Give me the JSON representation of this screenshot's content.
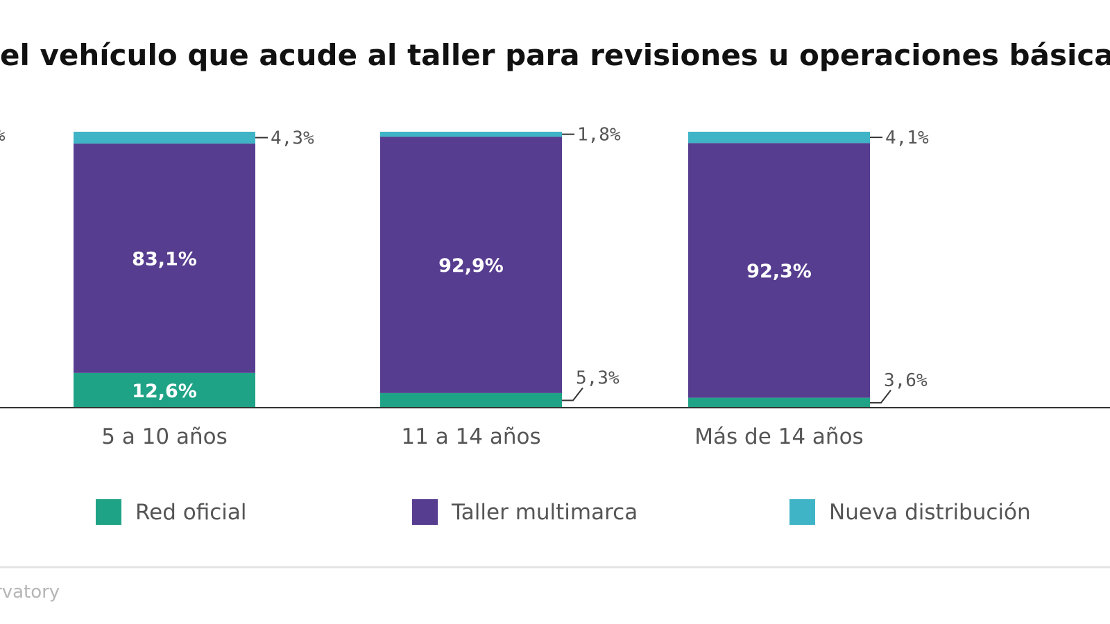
{
  "chart_data": {
    "type": "bar",
    "stacked": true,
    "title": "el vehículo que acude al taller para revisiones u operaciones básicas de m",
    "categories": [
      "5 a 10 años",
      "11 a 14 años",
      "Más de 14 años"
    ],
    "series": [
      {
        "name": "Red oficial",
        "color": "#1fa386",
        "values": [
          12.6,
          5.3,
          3.6
        ],
        "labels": [
          "12,6%",
          "5,3%",
          "3,6%"
        ]
      },
      {
        "name": "Taller multimarca",
        "color": "#563d8f",
        "values": [
          83.1,
          92.9,
          92.3
        ],
        "labels": [
          "83,1%",
          "92,9%",
          "92,3%"
        ]
      },
      {
        "name": "Nueva distribución",
        "color": "#3fb4c6",
        "values": [
          4.3,
          1.8,
          4.1
        ],
        "labels": [
          "4,3%",
          "1,8%",
          "4,1%"
        ]
      }
    ],
    "ylim": [
      0,
      100
    ],
    "grid": false,
    "legend_position": "bottom",
    "left_edge_label": "%",
    "source_fragment": "rvatory"
  }
}
